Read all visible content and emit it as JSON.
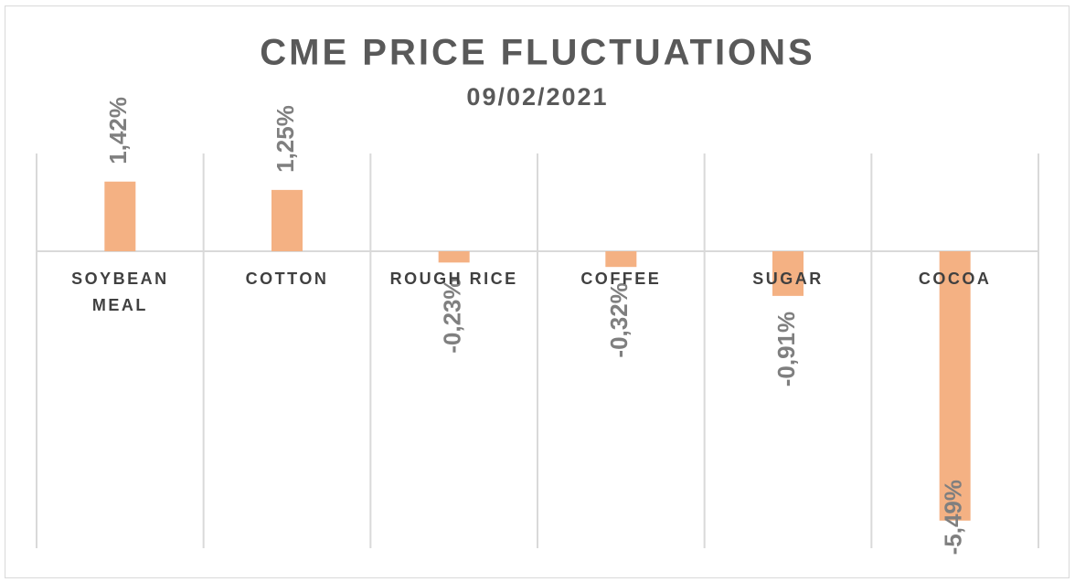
{
  "chart_data": {
    "type": "bar",
    "title": "CME PRICE FLUCTUATIONS",
    "subtitle": "09/02/2021",
    "categories": [
      "SOYBEAN MEAL",
      "COTTON",
      "ROUGH RICE",
      "COFFEE",
      "SUGAR",
      "COCOA"
    ],
    "values": [
      1.42,
      1.25,
      -0.23,
      -0.32,
      -0.91,
      -5.49
    ],
    "value_labels": [
      "1,42%",
      "1,25%",
      "-0,23%",
      "-0,32%",
      "-0,91%",
      "-5,49%"
    ],
    "color": "#f4b183"
  }
}
